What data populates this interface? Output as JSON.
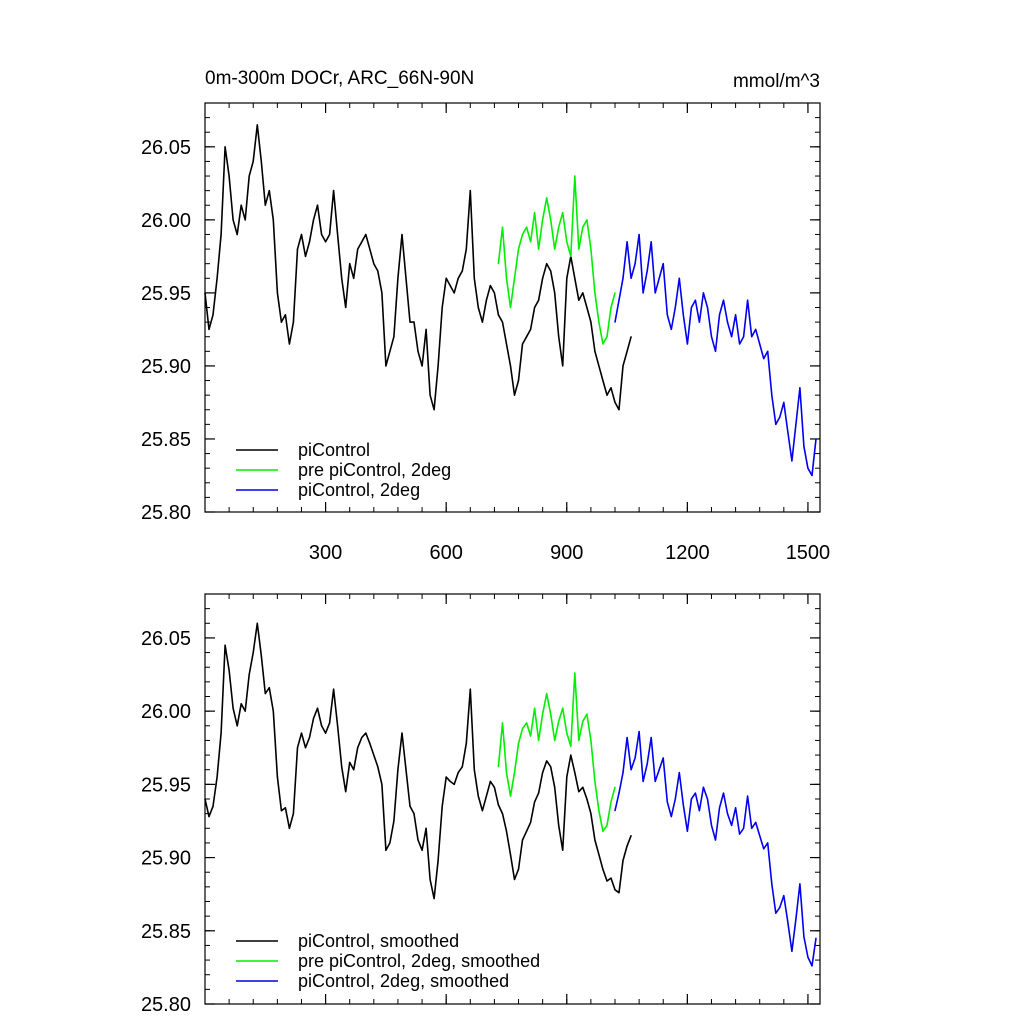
{
  "figure": {
    "title_left": "0m-300m DOCr, ARC_66N-90N",
    "title_right": "mmol/m^3"
  },
  "chart_data": [
    {
      "type": "line",
      "title": "0m-300m DOCr, ARC_66N-90N",
      "units": "mmol/m^3",
      "xlim": [
        0,
        1530
      ],
      "ylim": [
        25.8,
        26.08
      ],
      "x_ticks": [
        300,
        600,
        900,
        1200,
        1500
      ],
      "x_tick_labels": [
        "300",
        "600",
        "900",
        "1200",
        "1500"
      ],
      "y_ticks": [
        25.8,
        25.85,
        25.9,
        25.95,
        26.0,
        26.05
      ],
      "y_tick_labels": [
        "25.80",
        "25.85",
        "25.90",
        "25.95",
        "26.00",
        "26.05"
      ],
      "legend_position": "bottom-left",
      "series": [
        {
          "name": "piControl",
          "color": "#000000",
          "x": [
            0,
            10,
            20,
            30,
            40,
            50,
            60,
            70,
            80,
            90,
            100,
            110,
            120,
            130,
            140,
            150,
            160,
            170,
            180,
            190,
            200,
            210,
            220,
            230,
            240,
            250,
            260,
            270,
            280,
            290,
            300,
            310,
            320,
            330,
            340,
            350,
            360,
            370,
            380,
            390,
            400,
            410,
            420,
            430,
            440,
            450,
            460,
            470,
            480,
            490,
            500,
            510,
            520,
            530,
            540,
            550,
            560,
            570,
            580,
            590,
            600,
            610,
            620,
            630,
            640,
            650,
            660,
            670,
            680,
            690,
            700,
            710,
            720,
            730,
            740,
            750,
            760,
            770,
            780,
            790,
            800,
            810,
            820,
            830,
            840,
            850,
            860,
            870,
            880,
            890,
            900,
            910,
            920,
            930,
            940,
            950,
            960,
            970,
            980,
            990,
            1000,
            1010,
            1020,
            1030,
            1040,
            1050,
            1060
          ],
          "values": [
            25.95,
            25.925,
            25.935,
            25.96,
            25.99,
            26.05,
            26.03,
            26.0,
            25.99,
            26.01,
            26.0,
            26.03,
            26.04,
            26.065,
            26.04,
            26.01,
            26.02,
            26.0,
            25.95,
            25.93,
            25.935,
            25.915,
            25.93,
            25.98,
            25.99,
            25.975,
            25.985,
            26.0,
            26.01,
            25.99,
            25.985,
            25.99,
            26.02,
            25.99,
            25.96,
            25.94,
            25.97,
            25.96,
            25.98,
            25.985,
            25.99,
            25.98,
            25.97,
            25.965,
            25.95,
            25.9,
            25.91,
            25.92,
            25.96,
            25.99,
            25.96,
            25.93,
            25.93,
            25.91,
            25.9,
            25.925,
            25.88,
            25.87,
            25.9,
            25.94,
            25.96,
            25.955,
            25.95,
            25.96,
            25.965,
            25.98,
            26.02,
            25.96,
            25.94,
            25.93,
            25.945,
            25.955,
            25.95,
            25.935,
            25.93,
            25.915,
            25.9,
            25.88,
            25.89,
            25.915,
            25.92,
            25.925,
            25.94,
            25.945,
            25.96,
            25.97,
            25.965,
            25.95,
            25.92,
            25.9,
            25.96,
            25.975,
            25.96,
            25.945,
            25.95,
            25.94,
            25.93,
            25.91,
            25.9,
            25.89,
            25.88,
            25.885,
            25.875,
            25.87,
            25.9,
            25.91,
            25.92
          ]
        },
        {
          "name": "pre piControl, 2deg",
          "color": "#00ee00",
          "x": [
            730,
            740,
            750,
            760,
            770,
            780,
            790,
            800,
            810,
            820,
            830,
            840,
            850,
            860,
            870,
            880,
            890,
            900,
            910,
            920,
            930,
            940,
            950,
            960,
            970,
            980,
            990,
            1000,
            1010,
            1020
          ],
          "values": [
            25.97,
            25.995,
            25.96,
            25.94,
            25.96,
            25.98,
            25.99,
            25.995,
            25.985,
            26.005,
            25.98,
            26.0,
            26.015,
            26.0,
            25.98,
            25.995,
            26.005,
            25.985,
            25.975,
            26.03,
            25.98,
            25.995,
            26.0,
            25.98,
            25.95,
            25.93,
            25.915,
            25.92,
            25.94,
            25.95
          ]
        },
        {
          "name": "piControl, 2deg",
          "color": "#0000ee",
          "x": [
            1020,
            1030,
            1040,
            1050,
            1060,
            1070,
            1080,
            1090,
            1100,
            1110,
            1120,
            1130,
            1140,
            1150,
            1160,
            1170,
            1180,
            1190,
            1200,
            1210,
            1220,
            1230,
            1240,
            1250,
            1260,
            1270,
            1280,
            1290,
            1300,
            1310,
            1320,
            1330,
            1340,
            1350,
            1360,
            1370,
            1380,
            1390,
            1400,
            1410,
            1420,
            1430,
            1440,
            1450,
            1460,
            1470,
            1480,
            1490,
            1500,
            1510,
            1520
          ],
          "values": [
            25.93,
            25.945,
            25.96,
            25.985,
            25.96,
            25.97,
            25.99,
            25.95,
            25.965,
            25.985,
            25.95,
            25.96,
            25.97,
            25.935,
            25.925,
            25.94,
            25.96,
            25.935,
            25.915,
            25.94,
            25.945,
            25.93,
            25.95,
            25.94,
            25.92,
            25.91,
            25.935,
            25.945,
            25.93,
            25.92,
            25.935,
            25.915,
            25.92,
            25.945,
            25.92,
            25.925,
            25.915,
            25.905,
            25.91,
            25.88,
            25.86,
            25.865,
            25.875,
            25.855,
            25.835,
            25.86,
            25.885,
            25.845,
            25.83,
            25.825,
            25.85
          ]
        }
      ]
    },
    {
      "type": "line",
      "title": "",
      "xlim": [
        0,
        1530
      ],
      "ylim": [
        25.8,
        26.08
      ],
      "x_ticks": [
        300,
        600,
        900,
        1200,
        1500
      ],
      "y_ticks": [
        25.8,
        25.85,
        25.9,
        25.95,
        26.0,
        26.05
      ],
      "y_tick_labels": [
        "25.80",
        "25.85",
        "25.90",
        "25.95",
        "26.00",
        "26.05"
      ],
      "legend_position": "bottom-left",
      "series": [
        {
          "name": "piControl, smoothed",
          "color": "#000000",
          "x": [
            0,
            10,
            20,
            30,
            40,
            50,
            60,
            70,
            80,
            90,
            100,
            110,
            120,
            130,
            140,
            150,
            160,
            170,
            180,
            190,
            200,
            210,
            220,
            230,
            240,
            250,
            260,
            270,
            280,
            290,
            300,
            310,
            320,
            330,
            340,
            350,
            360,
            370,
            380,
            390,
            400,
            410,
            420,
            430,
            440,
            450,
            460,
            470,
            480,
            490,
            500,
            510,
            520,
            530,
            540,
            550,
            560,
            570,
            580,
            590,
            600,
            610,
            620,
            630,
            640,
            650,
            660,
            670,
            680,
            690,
            700,
            710,
            720,
            730,
            740,
            750,
            760,
            770,
            780,
            790,
            800,
            810,
            820,
            830,
            840,
            850,
            860,
            870,
            880,
            890,
            900,
            910,
            920,
            930,
            940,
            950,
            960,
            970,
            980,
            990,
            1000,
            1010,
            1020,
            1030,
            1040,
            1050,
            1060
          ],
          "values": [
            25.94,
            25.928,
            25.935,
            25.955,
            25.985,
            26.045,
            26.028,
            26.002,
            25.99,
            26.005,
            26.0,
            26.025,
            26.04,
            26.06,
            26.038,
            26.012,
            26.016,
            26.0,
            25.955,
            25.932,
            25.934,
            25.92,
            25.93,
            25.975,
            25.985,
            25.975,
            25.982,
            25.995,
            26.002,
            25.99,
            25.985,
            25.992,
            26.015,
            25.99,
            25.962,
            25.945,
            25.965,
            25.96,
            25.975,
            25.982,
            25.985,
            25.978,
            25.97,
            25.962,
            25.95,
            25.905,
            25.91,
            25.925,
            25.96,
            25.985,
            25.96,
            25.935,
            25.93,
            25.912,
            25.905,
            25.92,
            25.885,
            25.872,
            25.898,
            25.935,
            25.955,
            25.952,
            25.95,
            25.958,
            25.962,
            25.978,
            26.015,
            25.96,
            25.942,
            25.932,
            25.942,
            25.952,
            25.948,
            25.936,
            25.93,
            25.918,
            25.902,
            25.885,
            25.892,
            25.912,
            25.918,
            25.924,
            25.938,
            25.944,
            25.958,
            25.966,
            25.962,
            25.948,
            25.922,
            25.905,
            25.955,
            25.97,
            25.958,
            25.945,
            25.948,
            25.94,
            25.93,
            25.912,
            25.902,
            25.892,
            25.884,
            25.886,
            25.878,
            25.876,
            25.898,
            25.908,
            25.915
          ]
        },
        {
          "name": "pre piControl, 2deg, smoothed",
          "color": "#00ee00",
          "x": [
            730,
            740,
            750,
            760,
            770,
            780,
            790,
            800,
            810,
            820,
            830,
            840,
            850,
            860,
            870,
            880,
            890,
            900,
            910,
            920,
            930,
            940,
            950,
            960,
            970,
            980,
            990,
            1000,
            1010,
            1020
          ],
          "values": [
            25.962,
            25.992,
            25.958,
            25.942,
            25.958,
            25.978,
            25.988,
            25.992,
            25.983,
            26.002,
            25.98,
            25.998,
            26.012,
            25.998,
            25.98,
            25.993,
            26.002,
            25.985,
            25.976,
            26.026,
            25.98,
            25.993,
            25.998,
            25.98,
            25.952,
            25.932,
            25.918,
            25.922,
            25.938,
            25.948
          ]
        },
        {
          "name": "piControl, 2deg, smoothed",
          "color": "#0000ee",
          "x": [
            1020,
            1030,
            1040,
            1050,
            1060,
            1070,
            1080,
            1090,
            1100,
            1110,
            1120,
            1130,
            1140,
            1150,
            1160,
            1170,
            1180,
            1190,
            1200,
            1210,
            1220,
            1230,
            1240,
            1250,
            1260,
            1270,
            1280,
            1290,
            1300,
            1310,
            1320,
            1330,
            1340,
            1350,
            1360,
            1370,
            1380,
            1390,
            1400,
            1410,
            1420,
            1430,
            1440,
            1450,
            1460,
            1470,
            1480,
            1490,
            1500,
            1510,
            1520
          ],
          "values": [
            25.932,
            25.944,
            25.958,
            25.982,
            25.96,
            25.968,
            25.986,
            25.952,
            25.964,
            25.982,
            25.952,
            25.96,
            25.968,
            25.938,
            25.928,
            25.94,
            25.958,
            25.936,
            25.918,
            25.94,
            25.944,
            25.932,
            25.948,
            25.94,
            25.922,
            25.912,
            25.934,
            25.944,
            25.93,
            25.922,
            25.934,
            25.916,
            25.92,
            25.942,
            25.92,
            25.924,
            25.915,
            25.906,
            25.91,
            25.882,
            25.862,
            25.866,
            25.874,
            25.856,
            25.836,
            25.858,
            25.882,
            25.846,
            25.832,
            25.826,
            25.845
          ]
        }
      ]
    }
  ]
}
